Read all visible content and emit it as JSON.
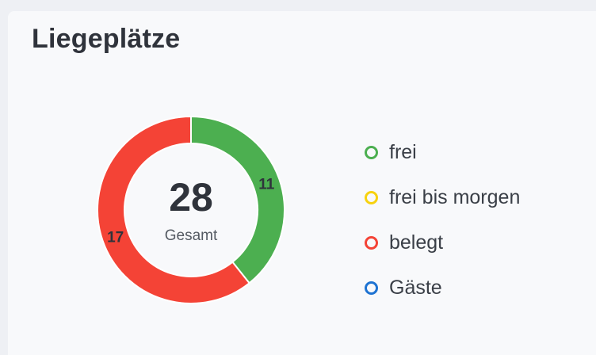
{
  "card": {
    "title": "Liegeplätze"
  },
  "chart_data": {
    "type": "pie",
    "variant": "donut",
    "title": "Liegeplätze",
    "center_value": "28",
    "center_label": "Gesamt",
    "series": [
      {
        "name": "frei",
        "value": 11,
        "color": "#4caf50",
        "label": "11"
      },
      {
        "name": "frei bis morgen",
        "value": 0,
        "color": "#f7d20f",
        "label": ""
      },
      {
        "name": "belegt",
        "value": 17,
        "color": "#f44336",
        "label": "17"
      },
      {
        "name": "Gäste",
        "value": 0,
        "color": "#1e73d2",
        "label": ""
      }
    ],
    "legend_position": "right"
  }
}
